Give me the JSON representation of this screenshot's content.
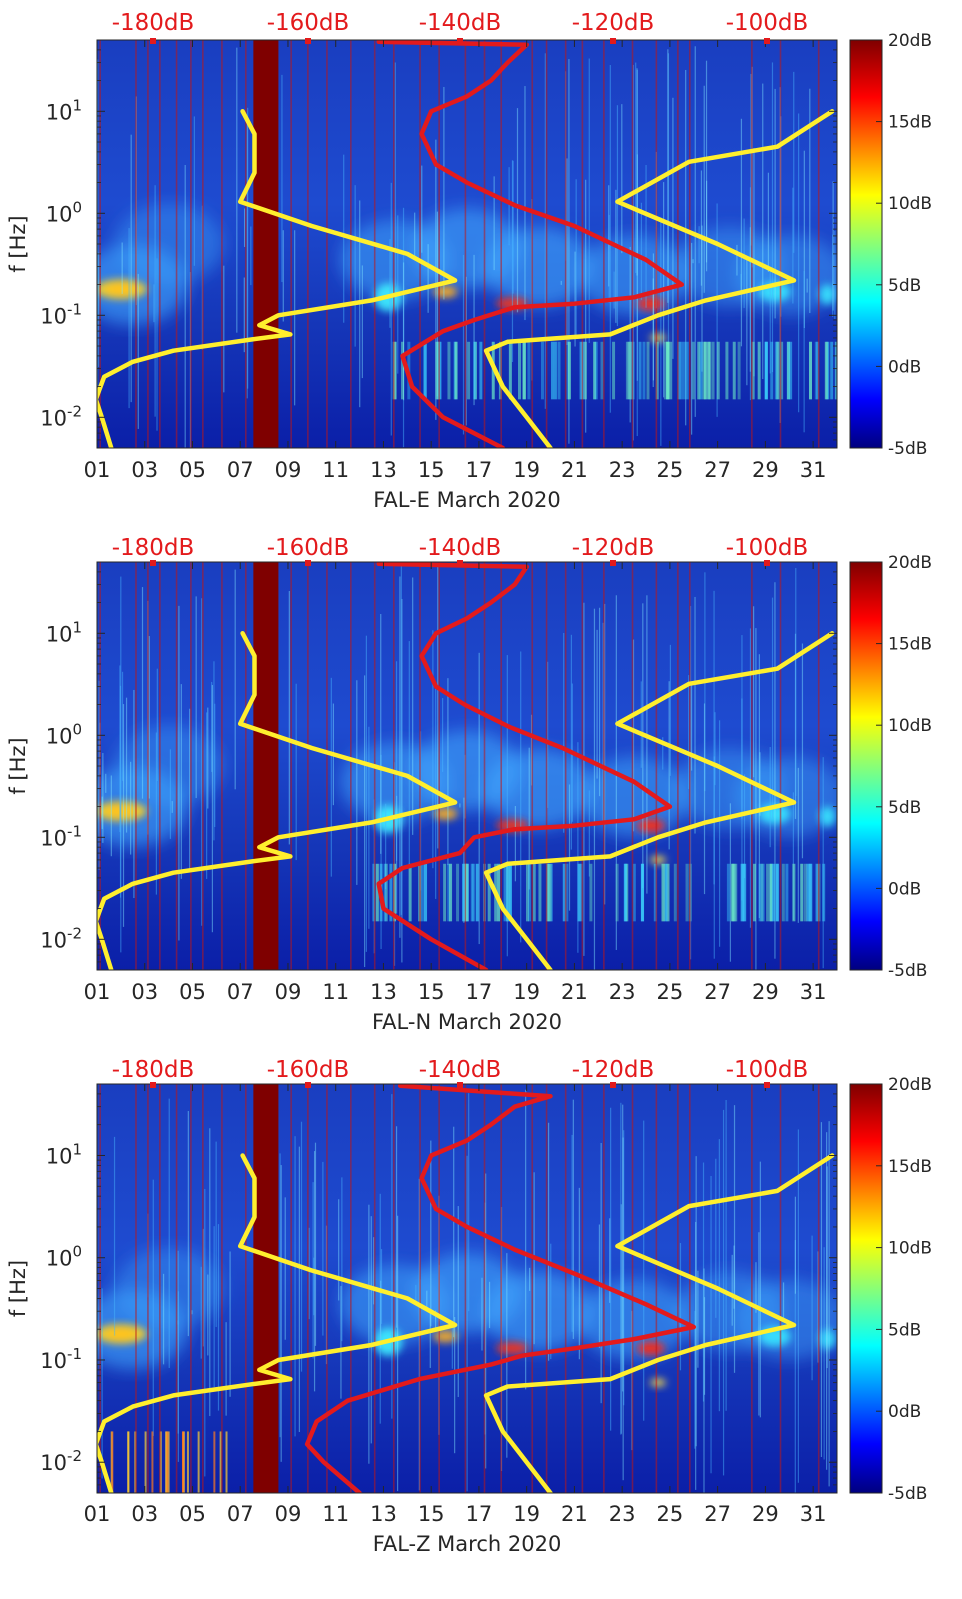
{
  "chart_data": [
    {
      "type": "heatmap",
      "title": "",
      "xlabel": "FAL-E March 2020",
      "ylabel": "f [Hz]",
      "x_ticks": [
        "01",
        "03",
        "05",
        "07",
        "09",
        "11",
        "13",
        "15",
        "17",
        "19",
        "21",
        "23",
        "25",
        "27",
        "29",
        "31"
      ],
      "y_ticks": [
        "10^-2",
        "10^-1",
        "10^0",
        "10^1"
      ],
      "top_labels": [
        "-180dB",
        "-160dB",
        "-140dB",
        "-120dB",
        "-100dB"
      ],
      "colorbar_ticks": [
        "20dB",
        "15dB",
        "10dB",
        "5dB",
        "0dB",
        "-5dB"
      ],
      "xlim": [
        1,
        32
      ],
      "ylim": [
        0.005,
        50
      ],
      "clim_db": [
        -5,
        20
      ],
      "series": [
        {
          "name": "yellow curve A",
          "color": "#ffef2e",
          "points": [
            [
              1.6,
              0.005
            ],
            [
              1.2,
              0.01
            ],
            [
              0.95,
              0.015
            ],
            [
              1.3,
              0.025
            ],
            [
              2.5,
              0.035
            ],
            [
              4.2,
              0.045
            ],
            [
              7.5,
              0.058
            ],
            [
              9.1,
              0.065
            ],
            [
              7.8,
              0.08
            ],
            [
              8.6,
              0.1
            ],
            [
              12.5,
              0.14
            ],
            [
              16,
              0.22
            ],
            [
              14,
              0.4
            ],
            [
              10,
              0.75
            ],
            [
              7,
              1.3
            ],
            [
              7.6,
              2.5
            ],
            [
              7.6,
              6
            ],
            [
              7.1,
              10
            ]
          ]
        },
        {
          "name": "yellow curve B",
          "color": "#ffef2e",
          "points": [
            [
              20,
              0.005
            ],
            [
              19,
              0.01
            ],
            [
              18,
              0.02
            ],
            [
              17.3,
              0.045
            ],
            [
              18.2,
              0.055
            ],
            [
              22.5,
              0.065
            ],
            [
              24.5,
              0.1
            ],
            [
              26.5,
              0.14
            ],
            [
              30.2,
              0.22
            ],
            [
              27,
              0.5
            ],
            [
              22.8,
              1.3
            ],
            [
              25.8,
              3.2
            ],
            [
              29.5,
              4.5
            ],
            [
              31.8,
              10
            ]
          ]
        },
        {
          "name": "red curve",
          "color": "#e31a1c",
          "points": [
            [
              18,
              0.005
            ],
            [
              15.5,
              0.01
            ],
            [
              14.2,
              0.02
            ],
            [
              13.8,
              0.04
            ],
            [
              15.5,
              0.07
            ],
            [
              16.8,
              0.09
            ],
            [
              18.5,
              0.12
            ],
            [
              21,
              0.13
            ],
            [
              23.5,
              0.15
            ],
            [
              25.5,
              0.2
            ],
            [
              24,
              0.35
            ],
            [
              21,
              0.75
            ],
            [
              18.5,
              1.2
            ],
            [
              16.5,
              2.0
            ],
            [
              15.2,
              3.0
            ],
            [
              14.6,
              6
            ],
            [
              15,
              10
            ],
            [
              16.5,
              14
            ],
            [
              17.5,
              20
            ],
            [
              18.2,
              30
            ],
            [
              19,
              45
            ],
            [
              12.8,
              48
            ]
          ]
        }
      ]
    },
    {
      "type": "heatmap",
      "title": "",
      "xlabel": "FAL-N March 2020",
      "ylabel": "f [Hz]",
      "x_ticks": [
        "01",
        "03",
        "05",
        "07",
        "09",
        "11",
        "13",
        "15",
        "17",
        "19",
        "21",
        "23",
        "25",
        "27",
        "29",
        "31"
      ],
      "y_ticks": [
        "10^-2",
        "10^-1",
        "10^0",
        "10^1"
      ],
      "top_labels": [
        "-180dB",
        "-160dB",
        "-140dB",
        "-120dB",
        "-100dB"
      ],
      "colorbar_ticks": [
        "20dB",
        "15dB",
        "10dB",
        "5dB",
        "0dB",
        "-5dB"
      ],
      "xlim": [
        1,
        32
      ],
      "ylim": [
        0.005,
        50
      ],
      "clim_db": [
        -5,
        20
      ],
      "series": [
        {
          "name": "yellow curve A",
          "color": "#ffef2e",
          "points": [
            [
              1.6,
              0.005
            ],
            [
              1.2,
              0.01
            ],
            [
              0.95,
              0.015
            ],
            [
              1.3,
              0.025
            ],
            [
              2.5,
              0.035
            ],
            [
              4.2,
              0.045
            ],
            [
              7.5,
              0.058
            ],
            [
              9.1,
              0.065
            ],
            [
              7.8,
              0.08
            ],
            [
              8.6,
              0.1
            ],
            [
              12.5,
              0.14
            ],
            [
              16,
              0.22
            ],
            [
              14,
              0.4
            ],
            [
              10,
              0.75
            ],
            [
              7,
              1.3
            ],
            [
              7.6,
              2.5
            ],
            [
              7.6,
              6
            ],
            [
              7.1,
              10
            ]
          ]
        },
        {
          "name": "yellow curve B",
          "color": "#ffef2e",
          "points": [
            [
              20,
              0.005
            ],
            [
              19,
              0.01
            ],
            [
              18,
              0.02
            ],
            [
              17.3,
              0.045
            ],
            [
              18.2,
              0.055
            ],
            [
              22.5,
              0.065
            ],
            [
              24.5,
              0.1
            ],
            [
              26.5,
              0.14
            ],
            [
              30.2,
              0.22
            ],
            [
              27,
              0.5
            ],
            [
              22.8,
              1.3
            ],
            [
              25.8,
              3.2
            ],
            [
              29.5,
              4.5
            ],
            [
              31.8,
              10
            ]
          ]
        },
        {
          "name": "red curve",
          "color": "#e31a1c",
          "points": [
            [
              17.3,
              0.005
            ],
            [
              15,
              0.01
            ],
            [
              13,
              0.02
            ],
            [
              12.8,
              0.035
            ],
            [
              13.8,
              0.05
            ],
            [
              16.2,
              0.07
            ],
            [
              16.8,
              0.1
            ],
            [
              18.5,
              0.12
            ],
            [
              21,
              0.13
            ],
            [
              23.5,
              0.15
            ],
            [
              25,
              0.2
            ],
            [
              23.5,
              0.35
            ],
            [
              20.5,
              0.75
            ],
            [
              18.3,
              1.2
            ],
            [
              16.4,
              2.0
            ],
            [
              15.2,
              3.0
            ],
            [
              14.6,
              6
            ],
            [
              15.2,
              10
            ],
            [
              16.5,
              14
            ],
            [
              17.5,
              20
            ],
            [
              18.5,
              30
            ],
            [
              19,
              45
            ],
            [
              12.8,
              48
            ]
          ]
        }
      ]
    },
    {
      "type": "heatmap",
      "title": "",
      "xlabel": "FAL-Z March 2020",
      "ylabel": "f [Hz]",
      "x_ticks": [
        "01",
        "03",
        "05",
        "07",
        "09",
        "11",
        "13",
        "15",
        "17",
        "19",
        "21",
        "23",
        "25",
        "27",
        "29",
        "31"
      ],
      "y_ticks": [
        "10^-2",
        "10^-1",
        "10^0",
        "10^1"
      ],
      "top_labels": [
        "-180dB",
        "-160dB",
        "-140dB",
        "-120dB",
        "-100dB"
      ],
      "colorbar_ticks": [
        "20dB",
        "15dB",
        "10dB",
        "5dB",
        "0dB",
        "-5dB"
      ],
      "xlim": [
        1,
        32
      ],
      "ylim": [
        0.005,
        50
      ],
      "clim_db": [
        -5,
        20
      ],
      "series": [
        {
          "name": "yellow curve A",
          "color": "#ffef2e",
          "points": [
            [
              1.6,
              0.005
            ],
            [
              1.2,
              0.01
            ],
            [
              0.95,
              0.015
            ],
            [
              1.3,
              0.025
            ],
            [
              2.5,
              0.035
            ],
            [
              4.2,
              0.045
            ],
            [
              7.5,
              0.058
            ],
            [
              9.1,
              0.065
            ],
            [
              7.8,
              0.08
            ],
            [
              8.6,
              0.1
            ],
            [
              12.5,
              0.14
            ],
            [
              16,
              0.22
            ],
            [
              14,
              0.4
            ],
            [
              10,
              0.75
            ],
            [
              7,
              1.3
            ],
            [
              7.6,
              2.5
            ],
            [
              7.6,
              6
            ],
            [
              7.1,
              10
            ]
          ]
        },
        {
          "name": "yellow curve B",
          "color": "#ffef2e",
          "points": [
            [
              20,
              0.005
            ],
            [
              19,
              0.01
            ],
            [
              18,
              0.02
            ],
            [
              17.3,
              0.045
            ],
            [
              18.2,
              0.055
            ],
            [
              22.5,
              0.065
            ],
            [
              24.5,
              0.1
            ],
            [
              26.5,
              0.14
            ],
            [
              30.2,
              0.22
            ],
            [
              27,
              0.5
            ],
            [
              22.8,
              1.3
            ],
            [
              25.8,
              3.2
            ],
            [
              29.5,
              4.5
            ],
            [
              31.8,
              10
            ]
          ]
        },
        {
          "name": "red curve",
          "color": "#e31a1c",
          "points": [
            [
              12,
              0.005
            ],
            [
              10.5,
              0.01
            ],
            [
              9.8,
              0.015
            ],
            [
              10.2,
              0.025
            ],
            [
              11.5,
              0.04
            ],
            [
              14.5,
              0.065
            ],
            [
              17.5,
              0.09
            ],
            [
              18.8,
              0.11
            ],
            [
              21,
              0.13
            ],
            [
              23.5,
              0.16
            ],
            [
              26,
              0.21
            ],
            [
              24,
              0.35
            ],
            [
              21,
              0.7
            ],
            [
              18.5,
              1.2
            ],
            [
              16.5,
              2.0
            ],
            [
              15.2,
              3.0
            ],
            [
              14.6,
              6
            ],
            [
              15,
              10
            ],
            [
              16.5,
              14
            ],
            [
              17.5,
              20
            ],
            [
              18.5,
              30
            ],
            [
              20,
              38
            ],
            [
              13.7,
              48
            ]
          ]
        }
      ]
    }
  ]
}
